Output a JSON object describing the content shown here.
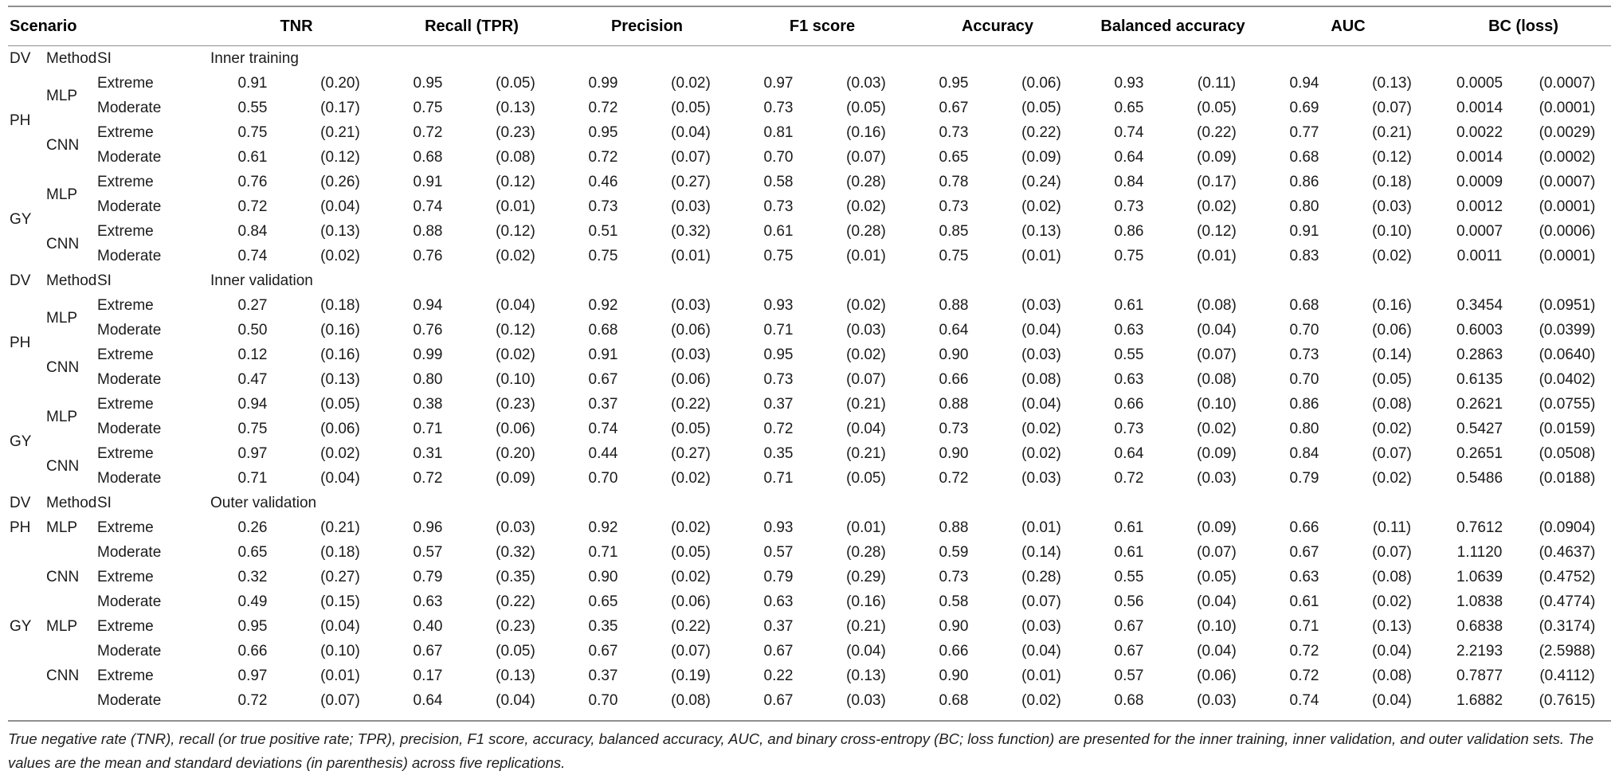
{
  "table": {
    "header": {
      "scenario": "Scenario",
      "metrics": [
        "TNR",
        "Recall (TPR)",
        "Precision",
        "F1 score",
        "Accuracy",
        "Balanced accuracy",
        "AUC",
        "BC (loss)"
      ]
    },
    "subheader": {
      "dv": "DV",
      "method": "Method",
      "si": "SI"
    },
    "sections": [
      {
        "title": "Inner training",
        "valign": "middle",
        "rows": [
          {
            "dv": "PH",
            "dv_span": 4,
            "method": "MLP",
            "method_span": 2,
            "si": "Extreme",
            "values": [
              "0.91",
              "(0.20)",
              "0.95",
              "(0.05)",
              "0.99",
              "(0.02)",
              "0.97",
              "(0.03)",
              "0.95",
              "(0.06)",
              "0.93",
              "(0.11)",
              "0.94",
              "(0.13)",
              "0.0005",
              "(0.0007)"
            ]
          },
          {
            "si": "Moderate",
            "values": [
              "0.55",
              "(0.17)",
              "0.75",
              "(0.13)",
              "0.72",
              "(0.05)",
              "0.73",
              "(0.05)",
              "0.67",
              "(0.05)",
              "0.65",
              "(0.05)",
              "0.69",
              "(0.07)",
              "0.0014",
              "(0.0001)"
            ]
          },
          {
            "method": "CNN",
            "method_span": 2,
            "si": "Extreme",
            "values": [
              "0.75",
              "(0.21)",
              "0.72",
              "(0.23)",
              "0.95",
              "(0.04)",
              "0.81",
              "(0.16)",
              "0.73",
              "(0.22)",
              "0.74",
              "(0.22)",
              "0.77",
              "(0.21)",
              "0.0022",
              "(0.0029)"
            ]
          },
          {
            "si": "Moderate",
            "values": [
              "0.61",
              "(0.12)",
              "0.68",
              "(0.08)",
              "0.72",
              "(0.07)",
              "0.70",
              "(0.07)",
              "0.65",
              "(0.09)",
              "0.64",
              "(0.09)",
              "0.68",
              "(0.12)",
              "0.0014",
              "(0.0002)"
            ]
          },
          {
            "dv": "GY",
            "dv_span": 4,
            "method": "MLP",
            "method_span": 2,
            "si": "Extreme",
            "values": [
              "0.76",
              "(0.26)",
              "0.91",
              "(0.12)",
              "0.46",
              "(0.27)",
              "0.58",
              "(0.28)",
              "0.78",
              "(0.24)",
              "0.84",
              "(0.17)",
              "0.86",
              "(0.18)",
              "0.0009",
              "(0.0007)"
            ]
          },
          {
            "si": "Moderate",
            "values": [
              "0.72",
              "(0.04)",
              "0.74",
              "(0.01)",
              "0.73",
              "(0.03)",
              "0.73",
              "(0.02)",
              "0.73",
              "(0.02)",
              "0.73",
              "(0.02)",
              "0.80",
              "(0.03)",
              "0.0012",
              "(0.0001)"
            ]
          },
          {
            "method": "CNN",
            "method_span": 2,
            "si": "Extreme",
            "values": [
              "0.84",
              "(0.13)",
              "0.88",
              "(0.12)",
              "0.51",
              "(0.32)",
              "0.61",
              "(0.28)",
              "0.85",
              "(0.13)",
              "0.86",
              "(0.12)",
              "0.91",
              "(0.10)",
              "0.0007",
              "(0.0006)"
            ]
          },
          {
            "si": "Moderate",
            "values": [
              "0.74",
              "(0.02)",
              "0.76",
              "(0.02)",
              "0.75",
              "(0.01)",
              "0.75",
              "(0.01)",
              "0.75",
              "(0.01)",
              "0.75",
              "(0.01)",
              "0.83",
              "(0.02)",
              "0.0011",
              "(0.0001)"
            ]
          }
        ]
      },
      {
        "title": "Inner validation",
        "valign": "middle",
        "rows": [
          {
            "dv": "PH",
            "dv_span": 4,
            "method": "MLP",
            "method_span": 2,
            "si": "Extreme",
            "values": [
              "0.27",
              "(0.18)",
              "0.94",
              "(0.04)",
              "0.92",
              "(0.03)",
              "0.93",
              "(0.02)",
              "0.88",
              "(0.03)",
              "0.61",
              "(0.08)",
              "0.68",
              "(0.16)",
              "0.3454",
              "(0.0951)"
            ]
          },
          {
            "si": "Moderate",
            "values": [
              "0.50",
              "(0.16)",
              "0.76",
              "(0.12)",
              "0.68",
              "(0.06)",
              "0.71",
              "(0.03)",
              "0.64",
              "(0.04)",
              "0.63",
              "(0.04)",
              "0.70",
              "(0.06)",
              "0.6003",
              "(0.0399)"
            ]
          },
          {
            "method": "CNN",
            "method_span": 2,
            "si": "Extreme",
            "values": [
              "0.12",
              "(0.16)",
              "0.99",
              "(0.02)",
              "0.91",
              "(0.03)",
              "0.95",
              "(0.02)",
              "0.90",
              "(0.03)",
              "0.55",
              "(0.07)",
              "0.73",
              "(0.14)",
              "0.2863",
              "(0.0640)"
            ]
          },
          {
            "si": "Moderate",
            "values": [
              "0.47",
              "(0.13)",
              "0.80",
              "(0.10)",
              "0.67",
              "(0.06)",
              "0.73",
              "(0.07)",
              "0.66",
              "(0.08)",
              "0.63",
              "(0.08)",
              "0.70",
              "(0.05)",
              "0.6135",
              "(0.0402)"
            ]
          },
          {
            "dv": "GY",
            "dv_span": 4,
            "method": "MLP",
            "method_span": 2,
            "si": "Extreme",
            "values": [
              "0.94",
              "(0.05)",
              "0.38",
              "(0.23)",
              "0.37",
              "(0.22)",
              "0.37",
              "(0.21)",
              "0.88",
              "(0.04)",
              "0.66",
              "(0.10)",
              "0.86",
              "(0.08)",
              "0.2621",
              "(0.0755)"
            ]
          },
          {
            "si": "Moderate",
            "values": [
              "0.75",
              "(0.06)",
              "0.71",
              "(0.06)",
              "0.74",
              "(0.05)",
              "0.72",
              "(0.04)",
              "0.73",
              "(0.02)",
              "0.73",
              "(0.02)",
              "0.80",
              "(0.02)",
              "0.5427",
              "(0.0159)"
            ]
          },
          {
            "method": "CNN",
            "method_span": 2,
            "si": "Extreme",
            "values": [
              "0.97",
              "(0.02)",
              "0.31",
              "(0.20)",
              "0.44",
              "(0.27)",
              "0.35",
              "(0.21)",
              "0.90",
              "(0.02)",
              "0.64",
              "(0.09)",
              "0.84",
              "(0.07)",
              "0.2651",
              "(0.0508)"
            ]
          },
          {
            "si": "Moderate",
            "values": [
              "0.71",
              "(0.04)",
              "0.72",
              "(0.09)",
              "0.70",
              "(0.02)",
              "0.71",
              "(0.05)",
              "0.72",
              "(0.03)",
              "0.72",
              "(0.03)",
              "0.79",
              "(0.02)",
              "0.5486",
              "(0.0188)"
            ]
          }
        ]
      },
      {
        "title": "Outer validation",
        "valign": "top",
        "rows": [
          {
            "dv": "PH",
            "dv_span": 4,
            "method": "MLP",
            "method_span": 2,
            "si": "Extreme",
            "values": [
              "0.26",
              "(0.21)",
              "0.96",
              "(0.03)",
              "0.92",
              "(0.02)",
              "0.93",
              "(0.01)",
              "0.88",
              "(0.01)",
              "0.61",
              "(0.09)",
              "0.66",
              "(0.11)",
              "0.7612",
              "(0.0904)"
            ]
          },
          {
            "si": "Moderate",
            "values": [
              "0.65",
              "(0.18)",
              "0.57",
              "(0.32)",
              "0.71",
              "(0.05)",
              "0.57",
              "(0.28)",
              "0.59",
              "(0.14)",
              "0.61",
              "(0.07)",
              "0.67",
              "(0.07)",
              "1.1120",
              "(0.4637)"
            ]
          },
          {
            "method": "CNN",
            "method_span": 2,
            "si": "Extreme",
            "values": [
              "0.32",
              "(0.27)",
              "0.79",
              "(0.35)",
              "0.90",
              "(0.02)",
              "0.79",
              "(0.29)",
              "0.73",
              "(0.28)",
              "0.55",
              "(0.05)",
              "0.63",
              "(0.08)",
              "1.0639",
              "(0.4752)"
            ]
          },
          {
            "si": "Moderate",
            "values": [
              "0.49",
              "(0.15)",
              "0.63",
              "(0.22)",
              "0.65",
              "(0.06)",
              "0.63",
              "(0.16)",
              "0.58",
              "(0.07)",
              "0.56",
              "(0.04)",
              "0.61",
              "(0.02)",
              "1.0838",
              "(0.4774)"
            ]
          },
          {
            "dv": "GY",
            "dv_span": 4,
            "method": "MLP",
            "method_span": 2,
            "si": "Extreme",
            "values": [
              "0.95",
              "(0.04)",
              "0.40",
              "(0.23)",
              "0.35",
              "(0.22)",
              "0.37",
              "(0.21)",
              "0.90",
              "(0.03)",
              "0.67",
              "(0.10)",
              "0.71",
              "(0.13)",
              "0.6838",
              "(0.3174)"
            ]
          },
          {
            "si": "Moderate",
            "values": [
              "0.66",
              "(0.10)",
              "0.67",
              "(0.05)",
              "0.67",
              "(0.07)",
              "0.67",
              "(0.04)",
              "0.66",
              "(0.04)",
              "0.67",
              "(0.04)",
              "0.72",
              "(0.04)",
              "2.2193",
              "(2.5988)"
            ]
          },
          {
            "method": "CNN",
            "method_span": 2,
            "si": "Extreme",
            "values": [
              "0.97",
              "(0.01)",
              "0.17",
              "(0.13)",
              "0.37",
              "(0.19)",
              "0.22",
              "(0.13)",
              "0.90",
              "(0.01)",
              "0.57",
              "(0.06)",
              "0.72",
              "(0.08)",
              "0.7877",
              "(0.4112)"
            ]
          },
          {
            "si": "Moderate",
            "values": [
              "0.72",
              "(0.07)",
              "0.64",
              "(0.04)",
              "0.70",
              "(0.08)",
              "0.67",
              "(0.03)",
              "0.68",
              "(0.02)",
              "0.68",
              "(0.03)",
              "0.74",
              "(0.04)",
              "1.6882",
              "(0.7615)"
            ]
          }
        ]
      }
    ]
  },
  "footnote": "True negative rate (TNR), recall (or true positive rate; TPR), precision, F1 score, accuracy, balanced accuracy, AUC, and binary cross-entropy (BC; loss function) are presented for the inner training, inner validation, and outer validation sets. The values are the mean and standard deviations (in parenthesis) across five replications."
}
